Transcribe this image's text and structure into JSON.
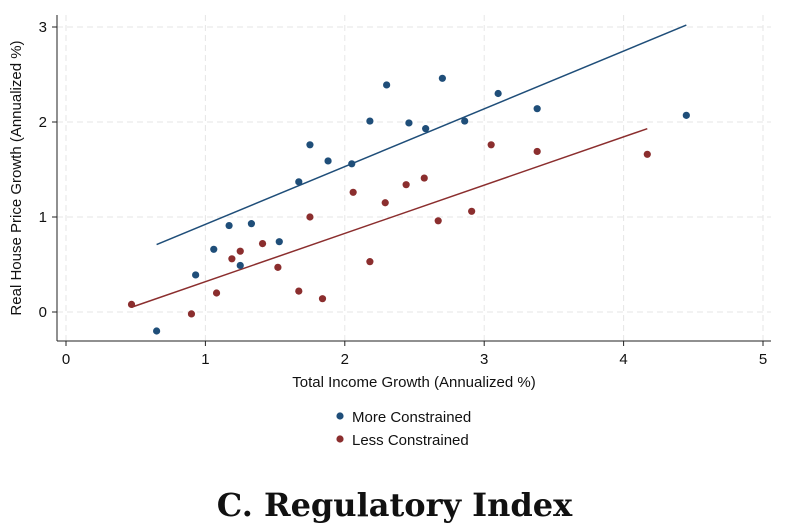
{
  "panel_title": "C. Regulatory Index",
  "chart_data": {
    "type": "scatter",
    "title": "",
    "xlabel": "Total Income Growth (Annualized %)",
    "ylabel": "Real House Price Growth (Annualized %)",
    "xlim": [
      0,
      5
    ],
    "ylim": [
      -0.25,
      3.1
    ],
    "xticks": [
      0,
      1,
      2,
      3,
      4,
      5
    ],
    "yticks": [
      0,
      1,
      2,
      3
    ],
    "grid": true,
    "legend_position": "bottom",
    "series": [
      {
        "name": "More Constrained",
        "color": "#1f4e79",
        "points": [
          [
            0.65,
            -0.2
          ],
          [
            0.93,
            0.39
          ],
          [
            1.06,
            0.66
          ],
          [
            1.17,
            0.91
          ],
          [
            1.25,
            0.49
          ],
          [
            1.33,
            0.93
          ],
          [
            1.53,
            0.74
          ],
          [
            1.67,
            1.37
          ],
          [
            1.75,
            1.76
          ],
          [
            1.88,
            1.59
          ],
          [
            2.05,
            1.56
          ],
          [
            2.18,
            2.01
          ],
          [
            2.3,
            2.39
          ],
          [
            2.46,
            1.99
          ],
          [
            2.58,
            1.93
          ],
          [
            2.7,
            2.46
          ],
          [
            2.86,
            2.01
          ],
          [
            3.1,
            2.3
          ],
          [
            3.38,
            2.14
          ],
          [
            4.45,
            2.07
          ]
        ],
        "fit": [
          [
            0.65,
            0.71
          ],
          [
            4.45,
            3.02
          ]
        ]
      },
      {
        "name": "Less Constrained",
        "color": "#8b2e2e",
        "points": [
          [
            0.47,
            0.08
          ],
          [
            0.9,
            -0.02
          ],
          [
            1.08,
            0.2
          ],
          [
            1.19,
            0.56
          ],
          [
            1.25,
            0.64
          ],
          [
            1.41,
            0.72
          ],
          [
            1.52,
            0.47
          ],
          [
            1.67,
            0.22
          ],
          [
            1.75,
            1.0
          ],
          [
            1.84,
            0.14
          ],
          [
            2.06,
            1.26
          ],
          [
            2.18,
            0.53
          ],
          [
            2.29,
            1.15
          ],
          [
            2.44,
            1.34
          ],
          [
            2.57,
            1.41
          ],
          [
            2.67,
            0.96
          ],
          [
            2.91,
            1.06
          ],
          [
            3.05,
            1.76
          ],
          [
            3.38,
            1.69
          ],
          [
            4.17,
            1.66
          ]
        ],
        "fit": [
          [
            0.47,
            0.05
          ],
          [
            4.17,
            1.93
          ]
        ]
      }
    ]
  }
}
